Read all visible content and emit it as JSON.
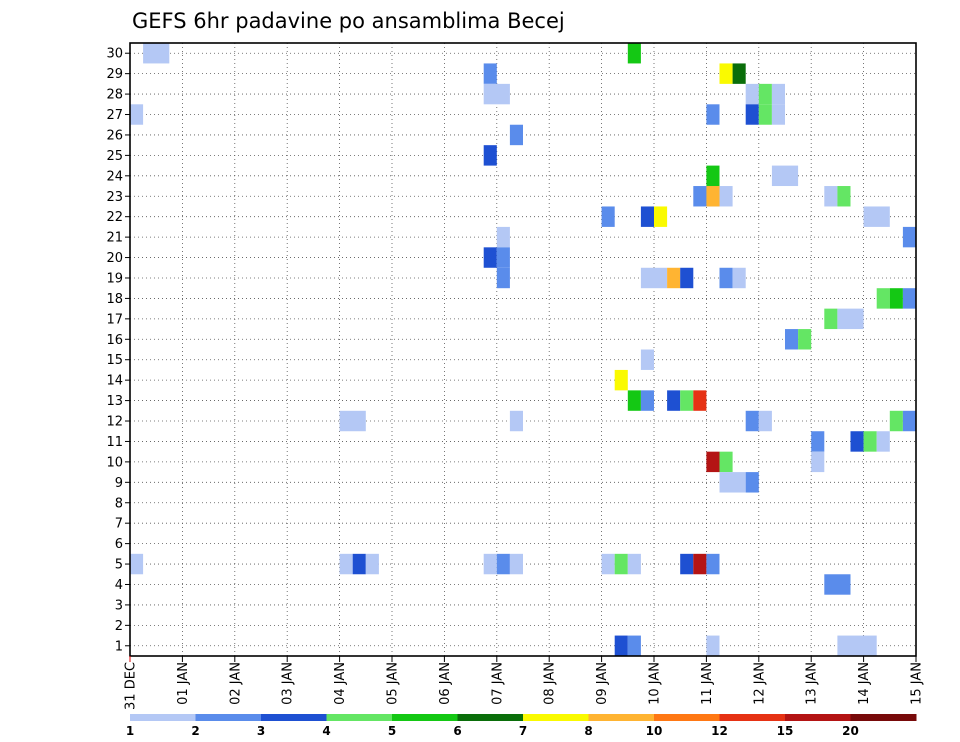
{
  "chart_data": {
    "type": "heatmap",
    "title": "GEFS 6hr padavine po ansamblima Becej",
    "x_tick_labels": [
      "31 DEC",
      "01 JAN",
      "02 JAN",
      "03 JAN",
      "04 JAN",
      "05 JAN",
      "06 JAN",
      "07 JAN",
      "08 JAN",
      "09 JAN",
      "10 JAN",
      "11 JAN",
      "12 JAN",
      "13 JAN",
      "14 JAN",
      "15 JAN"
    ],
    "y_tick_labels": [
      "1",
      "2",
      "3",
      "4",
      "5",
      "6",
      "7",
      "8",
      "9",
      "10",
      "11",
      "12",
      "13",
      "14",
      "15",
      "16",
      "17",
      "18",
      "19",
      "20",
      "21",
      "22",
      "23",
      "24",
      "25",
      "26",
      "27",
      "28",
      "29",
      "30"
    ],
    "xlim": [
      0,
      15
    ],
    "ylim": [
      0.5,
      30.5
    ],
    "x_unit": "days since 31 DEC",
    "grid": true,
    "colorbar": {
      "labels": [
        "1",
        "2",
        "3",
        "4",
        "5",
        "6",
        "7",
        "8",
        "10",
        "12",
        "15",
        "20"
      ],
      "colors": [
        "#b4c8f5",
        "#5a8ceb",
        "#1e50d2",
        "#64e664",
        "#14c814",
        "#0a6e0a",
        "#fafa00",
        "#ffb432",
        "#ff7814",
        "#e63214",
        "#b41414",
        "#780a0a"
      ]
    },
    "cells": [
      {
        "member": 30,
        "t": 0.375,
        "level": "#b4c8f5",
        "span": 2
      },
      {
        "member": 30,
        "t": 9.625,
        "level": "#14c814"
      },
      {
        "member": 29,
        "t": 6.875,
        "level": "#5a8ceb"
      },
      {
        "member": 29,
        "t": 11.375,
        "level": "#fafa00"
      },
      {
        "member": 29,
        "t": 11.625,
        "level": "#0a6e0a"
      },
      {
        "member": 28,
        "t": 6.875,
        "level": "#b4c8f5",
        "span": 2
      },
      {
        "member": 28,
        "t": 11.875,
        "level": "#b4c8f5"
      },
      {
        "member": 28,
        "t": 12.125,
        "level": "#64e664"
      },
      {
        "member": 28,
        "t": 12.375,
        "level": "#b4c8f5"
      },
      {
        "member": 27,
        "t": 0.125,
        "level": "#b4c8f5"
      },
      {
        "member": 27,
        "t": 11.125,
        "level": "#5a8ceb"
      },
      {
        "member": 27,
        "t": 11.875,
        "level": "#1e50d2"
      },
      {
        "member": 27,
        "t": 12.125,
        "level": "#64e664"
      },
      {
        "member": 27,
        "t": 12.375,
        "level": "#b4c8f5"
      },
      {
        "member": 26,
        "t": 7.375,
        "level": "#5a8ceb"
      },
      {
        "member": 25,
        "t": 6.875,
        "level": "#1e50d2"
      },
      {
        "member": 24,
        "t": 11.125,
        "level": "#14c814"
      },
      {
        "member": 24,
        "t": 12.375,
        "level": "#b4c8f5",
        "span": 2
      },
      {
        "member": 23,
        "t": 10.875,
        "level": "#5a8ceb",
        "span": 2
      },
      {
        "member": 23,
        "t": 11.125,
        "level": "#ffb432"
      },
      {
        "member": 23,
        "t": 11.375,
        "level": "#b4c8f5"
      },
      {
        "member": 23,
        "t": 13.375,
        "level": "#b4c8f5"
      },
      {
        "member": 23,
        "t": 13.625,
        "level": "#64e664"
      },
      {
        "member": 22,
        "t": 9.125,
        "level": "#5a8ceb"
      },
      {
        "member": 22,
        "t": 9.875,
        "level": "#1e50d2"
      },
      {
        "member": 22,
        "t": 10.125,
        "level": "#fafa00"
      },
      {
        "member": 22,
        "t": 14.125,
        "level": "#b4c8f5",
        "span": 2
      },
      {
        "member": 21,
        "t": 7.125,
        "level": "#b4c8f5"
      },
      {
        "member": 21,
        "t": 14.875,
        "level": "#5a8ceb"
      },
      {
        "member": 20,
        "t": 6.875,
        "level": "#1e50d2"
      },
      {
        "member": 20,
        "t": 7.125,
        "level": "#5a8ceb"
      },
      {
        "member": 19,
        "t": 7.125,
        "level": "#5a8ceb"
      },
      {
        "member": 19,
        "t": 9.875,
        "level": "#b4c8f5",
        "span": 2
      },
      {
        "member": 19,
        "t": 10.375,
        "level": "#ffb432"
      },
      {
        "member": 19,
        "t": 10.625,
        "level": "#1e50d2"
      },
      {
        "member": 19,
        "t": 11.375,
        "level": "#5a8ceb"
      },
      {
        "member": 19,
        "t": 11.625,
        "level": "#b4c8f5"
      },
      {
        "member": 18,
        "t": 14.375,
        "level": "#64e664"
      },
      {
        "member": 18,
        "t": 14.625,
        "level": "#14c814"
      },
      {
        "member": 18,
        "t": 14.875,
        "level": "#5a8ceb"
      },
      {
        "member": 17,
        "t": 13.375,
        "level": "#64e664"
      },
      {
        "member": 17,
        "t": 13.625,
        "level": "#b4c8f5",
        "span": 2
      },
      {
        "member": 16,
        "t": 12.625,
        "level": "#5a8ceb"
      },
      {
        "member": 16,
        "t": 12.875,
        "level": "#64e664"
      },
      {
        "member": 15,
        "t": 9.875,
        "level": "#b4c8f5"
      },
      {
        "member": 14,
        "t": 9.375,
        "level": "#fafa00"
      },
      {
        "member": 13,
        "t": 9.625,
        "level": "#14c814"
      },
      {
        "member": 13,
        "t": 9.875,
        "level": "#5a8ceb"
      },
      {
        "member": 13,
        "t": 10.375,
        "level": "#1e50d2"
      },
      {
        "member": 13,
        "t": 10.625,
        "level": "#64e664"
      },
      {
        "member": 13,
        "t": 10.875,
        "level": "#e63214"
      },
      {
        "member": 12,
        "t": 4.125,
        "level": "#b4c8f5",
        "span": 2
      },
      {
        "member": 12,
        "t": 7.375,
        "level": "#b4c8f5"
      },
      {
        "member": 12,
        "t": 11.875,
        "level": "#5a8ceb"
      },
      {
        "member": 12,
        "t": 12.125,
        "level": "#b4c8f5"
      },
      {
        "member": 12,
        "t": 14.625,
        "level": "#64e664"
      },
      {
        "member": 12,
        "t": 14.875,
        "level": "#5a8ceb"
      },
      {
        "member": 11,
        "t": 13.125,
        "level": "#5a8ceb"
      },
      {
        "member": 11,
        "t": 13.875,
        "level": "#1e50d2"
      },
      {
        "member": 11,
        "t": 14.125,
        "level": "#64e664"
      },
      {
        "member": 11,
        "t": 14.375,
        "level": "#b4c8f5"
      },
      {
        "member": 10,
        "t": 11.125,
        "level": "#b41414"
      },
      {
        "member": 10,
        "t": 11.375,
        "level": "#64e664"
      },
      {
        "member": 10,
        "t": 13.125,
        "level": "#b4c8f5"
      },
      {
        "member": 9,
        "t": 11.375,
        "level": "#b4c8f5",
        "span": 2
      },
      {
        "member": 9,
        "t": 11.875,
        "level": "#5a8ceb"
      },
      {
        "member": 5,
        "t": 0.125,
        "level": "#b4c8f5"
      },
      {
        "member": 5,
        "t": 4.125,
        "level": "#b4c8f5"
      },
      {
        "member": 5,
        "t": 4.375,
        "level": "#1e50d2"
      },
      {
        "member": 5,
        "t": 4.625,
        "level": "#b4c8f5"
      },
      {
        "member": 5,
        "t": 6.875,
        "level": "#b4c8f5"
      },
      {
        "member": 5,
        "t": 7.125,
        "level": "#5a8ceb"
      },
      {
        "member": 5,
        "t": 7.375,
        "level": "#b4c8f5"
      },
      {
        "member": 5,
        "t": 9.125,
        "level": "#b4c8f5"
      },
      {
        "member": 5,
        "t": 9.375,
        "level": "#64e664"
      },
      {
        "member": 5,
        "t": 9.625,
        "level": "#b4c8f5"
      },
      {
        "member": 5,
        "t": 10.625,
        "level": "#1e50d2"
      },
      {
        "member": 5,
        "t": 10.875,
        "level": "#b41414"
      },
      {
        "member": 5,
        "t": 11.125,
        "level": "#5a8ceb"
      },
      {
        "member": 4,
        "t": 13.375,
        "level": "#5a8ceb",
        "span": 2
      },
      {
        "member": 1,
        "t": 9.375,
        "level": "#1e50d2"
      },
      {
        "member": 1,
        "t": 9.625,
        "level": "#5a8ceb"
      },
      {
        "member": 1,
        "t": 11.125,
        "level": "#b4c8f5"
      },
      {
        "member": 1,
        "t": 13.625,
        "level": "#b4c8f5",
        "span": 3
      }
    ]
  }
}
